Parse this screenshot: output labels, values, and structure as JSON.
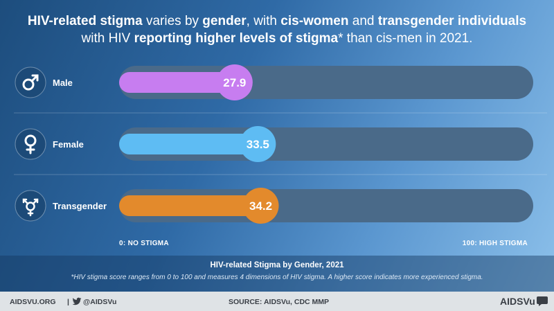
{
  "headline": {
    "line1": [
      {
        "text": "HIV-related stigma",
        "bold": true
      },
      {
        "text": " varies by ",
        "bold": false
      },
      {
        "text": "gender",
        "bold": true
      },
      {
        "text": ", with ",
        "bold": false
      },
      {
        "text": "cis-women",
        "bold": true
      },
      {
        "text": " and ",
        "bold": false
      },
      {
        "text": "transgender individuals",
        "bold": true
      }
    ],
    "line2": [
      {
        "text": "with HIV ",
        "bold": false
      },
      {
        "text": "reporting higher levels of stigma",
        "bold": true
      },
      {
        "text": "* than cis-men in 2021.",
        "bold": false
      }
    ]
  },
  "chart_data": {
    "type": "bar",
    "orientation": "horizontal",
    "categories": [
      "Male",
      "Female",
      "Transgender"
    ],
    "values": [
      27.9,
      33.5,
      34.2
    ],
    "value_labels": [
      "27.9",
      "33.5",
      "34.2"
    ],
    "icons": [
      "male-symbol-icon",
      "female-symbol-icon",
      "transgender-symbol-icon"
    ],
    "colors": [
      "#c77df0",
      "#5ebcf3",
      "#e38a2c"
    ],
    "track_color": "#4a6a89",
    "xlim": [
      0,
      100
    ],
    "axis_labels": {
      "min": "0: NO STIGMA",
      "max": "100: HIGH STIGMA"
    },
    "caption_title": "HIV-related Stigma by Gender, 2021",
    "caption_note": "*HIV stigma score ranges from 0 to 100 and measures 4 dimensions of HIV stigma. A higher score indicates more experienced stigma."
  },
  "footer": {
    "site": "AIDSVU.ORG",
    "separator": "|",
    "handle": "@AIDSVu",
    "source": "SOURCE: AIDSVu, CDC MMP",
    "brand": "AIDSVu"
  }
}
